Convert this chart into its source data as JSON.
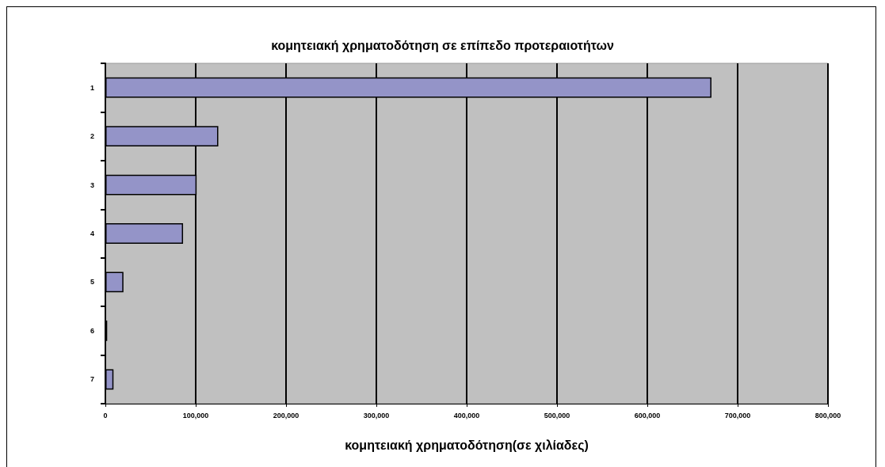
{
  "chart_data": {
    "type": "bar",
    "orientation": "horizontal",
    "title": "κομητειακή χρηματοδότηση σε επίπεδο προτεραιοτήτων",
    "xlabel": "κομητειακή χρηματοδότηση(σε χιλίαδες)",
    "categories": [
      "1",
      "2",
      "3",
      "4",
      "5",
      "6",
      "7"
    ],
    "values": [
      671000,
      125000,
      101000,
      86000,
      20000,
      2000,
      9000
    ],
    "color": "#9494c8",
    "xlim": [
      0,
      800000
    ],
    "xticks": [
      0,
      {
        "value": 100000,
        "label": "100,000"
      },
      {
        "value": 200000,
        "label": "200,000"
      },
      {
        "value": 300000,
        "label": "300,000"
      },
      {
        "value": 400000,
        "label": "400,000"
      },
      {
        "value": 500000,
        "label": "500,000"
      },
      {
        "value": 600000,
        "label": "600,000"
      },
      {
        "value": 700000,
        "label": "700,000"
      },
      {
        "value": 800000,
        "label": "800,000"
      }
    ],
    "grid": "x"
  }
}
